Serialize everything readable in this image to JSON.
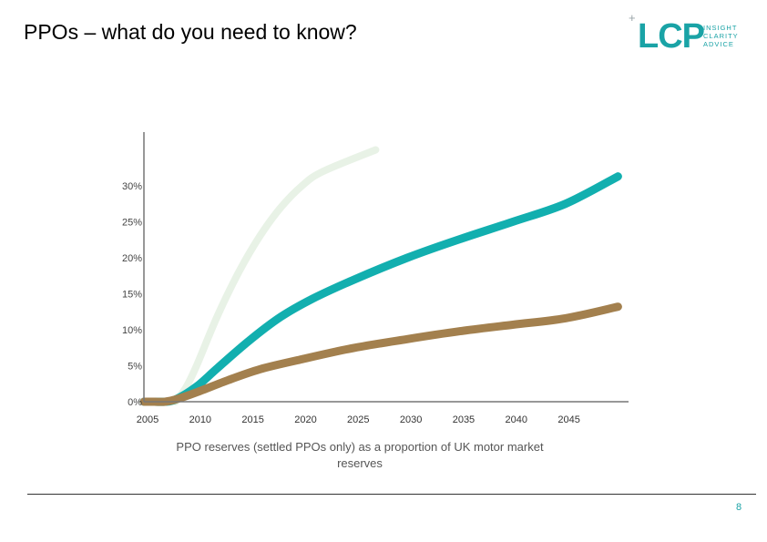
{
  "slide": {
    "title": "PPOs – what do you need to know?",
    "page_number": "8"
  },
  "logo": {
    "plus": "+",
    "wordmark": "LCP",
    "tagline": [
      "INSIGHT",
      "CLARITY",
      "ADVICE"
    ]
  },
  "caption": "PPO reserves (settled PPOs only) as a proportion of UK motor market reserves",
  "colors": {
    "teal": "#12afaf",
    "brown": "#a3804e",
    "pale_green": "#e8f2e6",
    "axis": "#777777"
  },
  "chart_data": {
    "type": "line",
    "title": "",
    "xlabel": "",
    "ylabel": "",
    "xlim": [
      2005,
      2051
    ],
    "ylim": [
      0,
      35
    ],
    "x_ticks": [
      2005,
      2010,
      2015,
      2020,
      2025,
      2030,
      2035,
      2040,
      2045
    ],
    "x_tick_labels": [
      "2005",
      "2010",
      "2015",
      "2020",
      "2025",
      "2030",
      "2035",
      "2040",
      "2045"
    ],
    "y_ticks": [
      0,
      5,
      10,
      15,
      20,
      25,
      30
    ],
    "y_tick_labels": [
      "0%",
      "5%",
      "10%",
      "15%",
      "20%",
      "25%",
      "30%"
    ],
    "grid": false,
    "legend": "none",
    "series": [
      {
        "color": "#e8f2e6",
        "x": [
          2008,
          2009,
          2010,
          2012,
          2014,
          2016,
          2018,
          2020,
          2022,
          2027
        ],
        "values": [
          0,
          2,
          5,
          12,
          18,
          23,
          27,
          30,
          32,
          35
        ]
      },
      {
        "color": "#12afaf",
        "x": [
          2005,
          2006,
          2007,
          2008,
          2010,
          2012,
          2015,
          2018,
          2021,
          2025,
          2030,
          2035,
          2040,
          2045,
          2050
        ],
        "values": [
          0,
          0,
          0,
          0.3,
          2.1,
          4.7,
          8.5,
          11.8,
          14.3,
          17.0,
          20.0,
          22.6,
          25.0,
          27.5,
          31.3
        ]
      },
      {
        "color": "#a3804e",
        "x": [
          2005,
          2006,
          2007,
          2008,
          2010,
          2013,
          2016,
          2020,
          2025,
          2030,
          2035,
          2040,
          2045,
          2050
        ],
        "values": [
          0,
          0,
          0,
          0.3,
          1.3,
          3.0,
          4.5,
          5.9,
          7.5,
          8.7,
          9.8,
          10.7,
          11.6,
          13.2
        ]
      }
    ]
  }
}
